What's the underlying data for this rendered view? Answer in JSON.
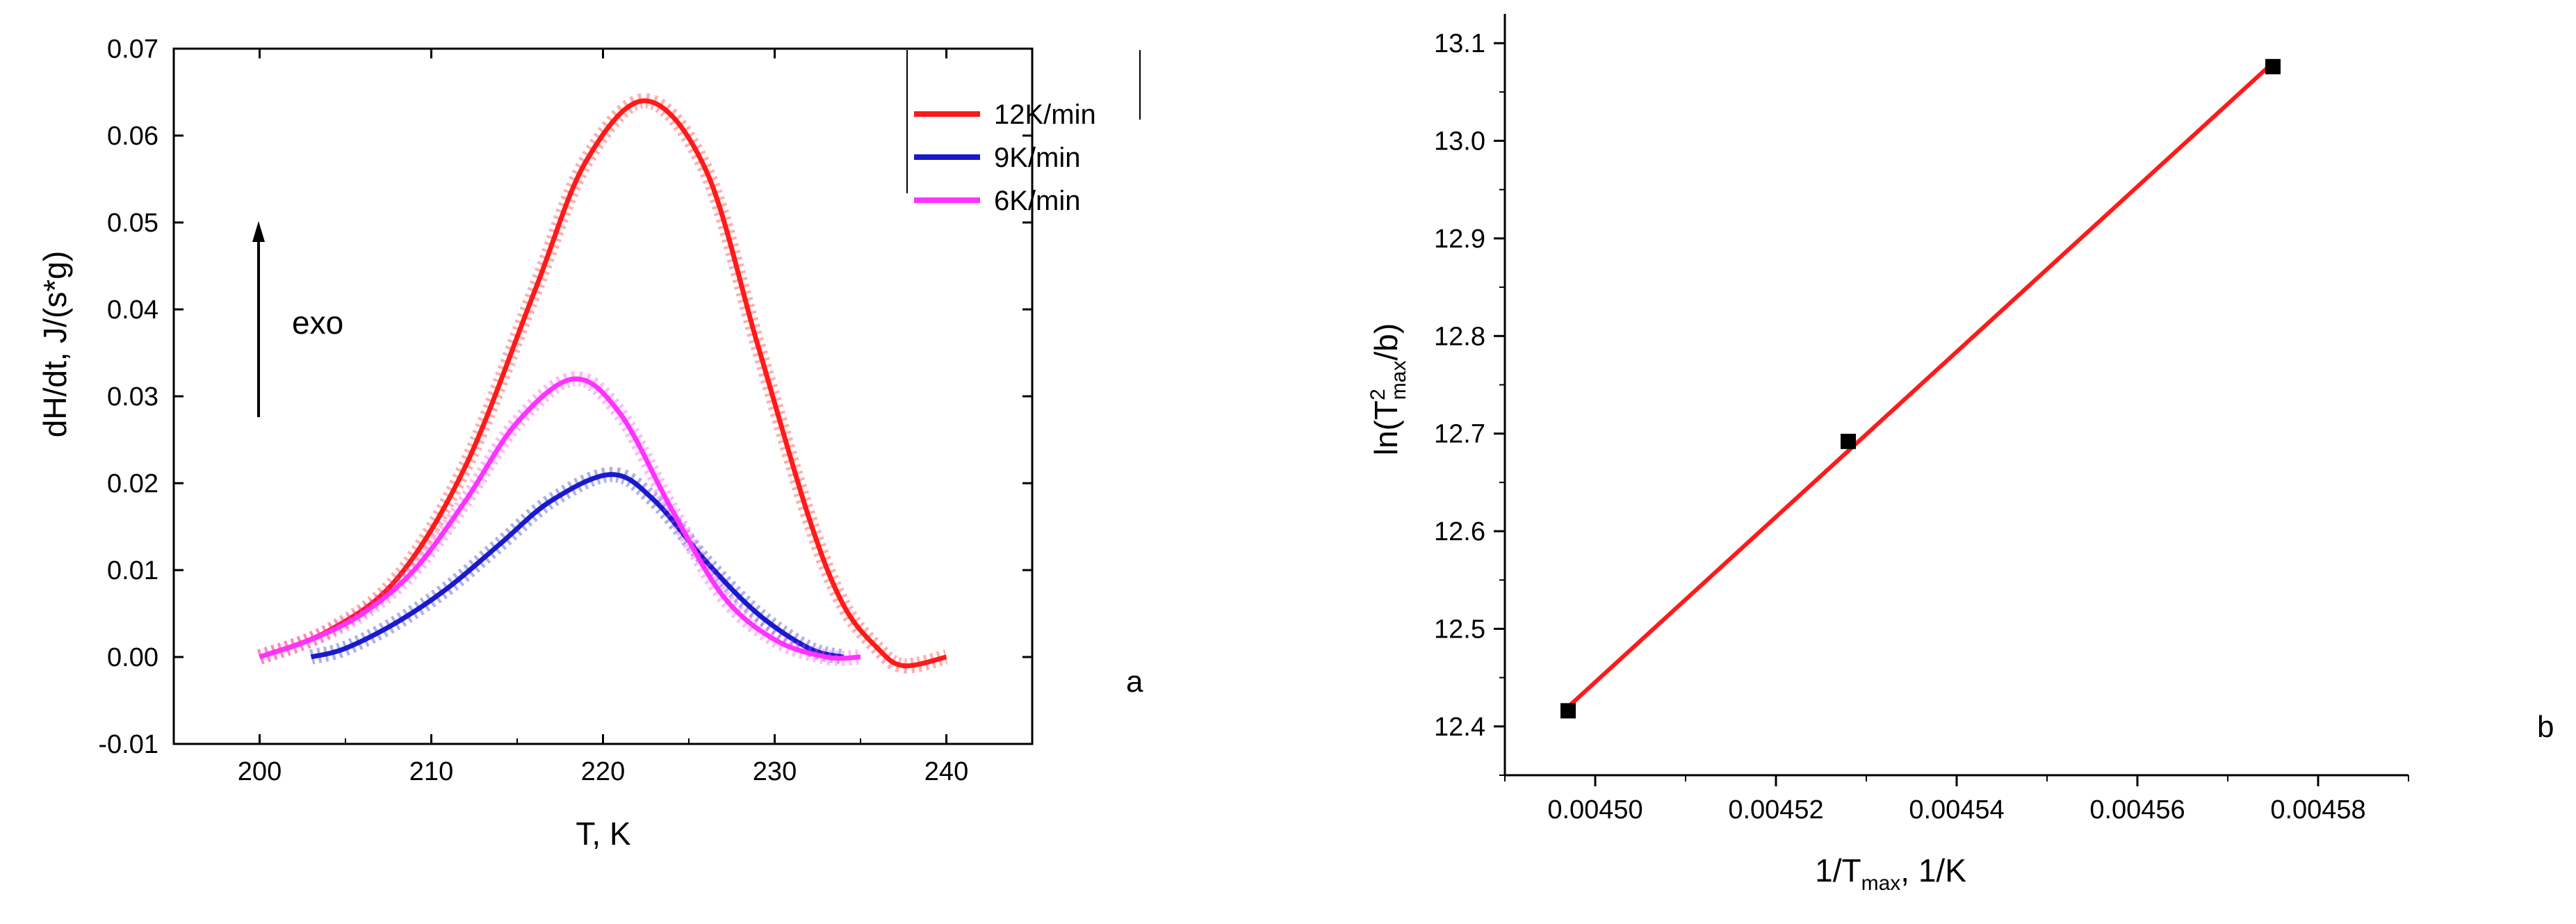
{
  "chart_data": [
    {
      "panel": "a",
      "type": "line",
      "xlabel": "T, K",
      "ylabel": "dH/dt, J/(s*g)",
      "xlim": [
        195,
        245
      ],
      "ylim": [
        -0.01,
        0.07
      ],
      "xticks": [
        200,
        210,
        220,
        230,
        240
      ],
      "yticks": [
        "-0.01",
        "0.00",
        "0.01",
        "0.02",
        "0.03",
        "0.04",
        "0.05",
        "0.06",
        "0.07"
      ],
      "annotation": "exo",
      "series": [
        {
          "name": "12K/min",
          "color": "#ff1a1a",
          "x": [
            200,
            204,
            208,
            212,
            216,
            219,
            222.5,
            226,
            229,
            232,
            234,
            236,
            237.5,
            240
          ],
          "y": [
            0.0,
            0.003,
            0.009,
            0.022,
            0.042,
            0.057,
            0.064,
            0.056,
            0.036,
            0.016,
            0.006,
            0.001,
            -0.001,
            0.0
          ]
        },
        {
          "name": "9K/min",
          "color": "#1a1acc",
          "x": [
            203,
            205,
            208,
            211,
            214,
            217,
            220.5,
            223,
            226,
            229,
            232,
            234
          ],
          "y": [
            0.0,
            0.001,
            0.004,
            0.008,
            0.013,
            0.018,
            0.021,
            0.018,
            0.011,
            0.005,
            0.001,
            0.0
          ]
        },
        {
          "name": "6K/min",
          "color": "#ff33ff",
          "x": [
            200,
            203,
            206,
            209,
            212,
            215,
            218.3,
            221,
            224,
            227,
            230,
            233,
            235
          ],
          "y": [
            0.0,
            0.002,
            0.005,
            0.01,
            0.018,
            0.027,
            0.032,
            0.028,
            0.017,
            0.007,
            0.002,
            0.0,
            0.0
          ]
        }
      ]
    },
    {
      "panel": "b",
      "type": "scatter",
      "xlabel": "1/T_max, 1/K",
      "ylabel": "ln(T^2_max/b)",
      "xlim": [
        0.00449,
        0.00459
      ],
      "ylim": [
        12.35,
        13.13
      ],
      "xticks": [
        "0.00450",
        "0.00452",
        "0.00454",
        "0.00456",
        "0.00458"
      ],
      "yticks": [
        "12.4",
        "12.5",
        "12.6",
        "12.7",
        "12.8",
        "12.9",
        "13.0",
        "13.1"
      ],
      "points": [
        {
          "x": 0.004497,
          "y": 12.416
        },
        {
          "x": 0.004528,
          "y": 12.692
        },
        {
          "x": 0.004575,
          "y": 13.076
        }
      ],
      "fit": {
        "x": [
          0.004497,
          0.004575
        ],
        "y": [
          12.42,
          13.08
        ],
        "color": "#ff1a1a"
      }
    }
  ],
  "panel_a": {
    "xlabel": "T, K",
    "ylabel": "dH/dt, J/(s*g)",
    "annotation": "exo",
    "tag": "a"
  },
  "panel_b": {
    "xlabel_main": "1/T",
    "xlabel_sub": "max",
    "xlabel_tail": ", 1/K",
    "ylabel_head": "ln(T",
    "ylabel_sup": "2",
    "ylabel_sub": "max",
    "ylabel_tail": "/b)",
    "tag": "b"
  }
}
